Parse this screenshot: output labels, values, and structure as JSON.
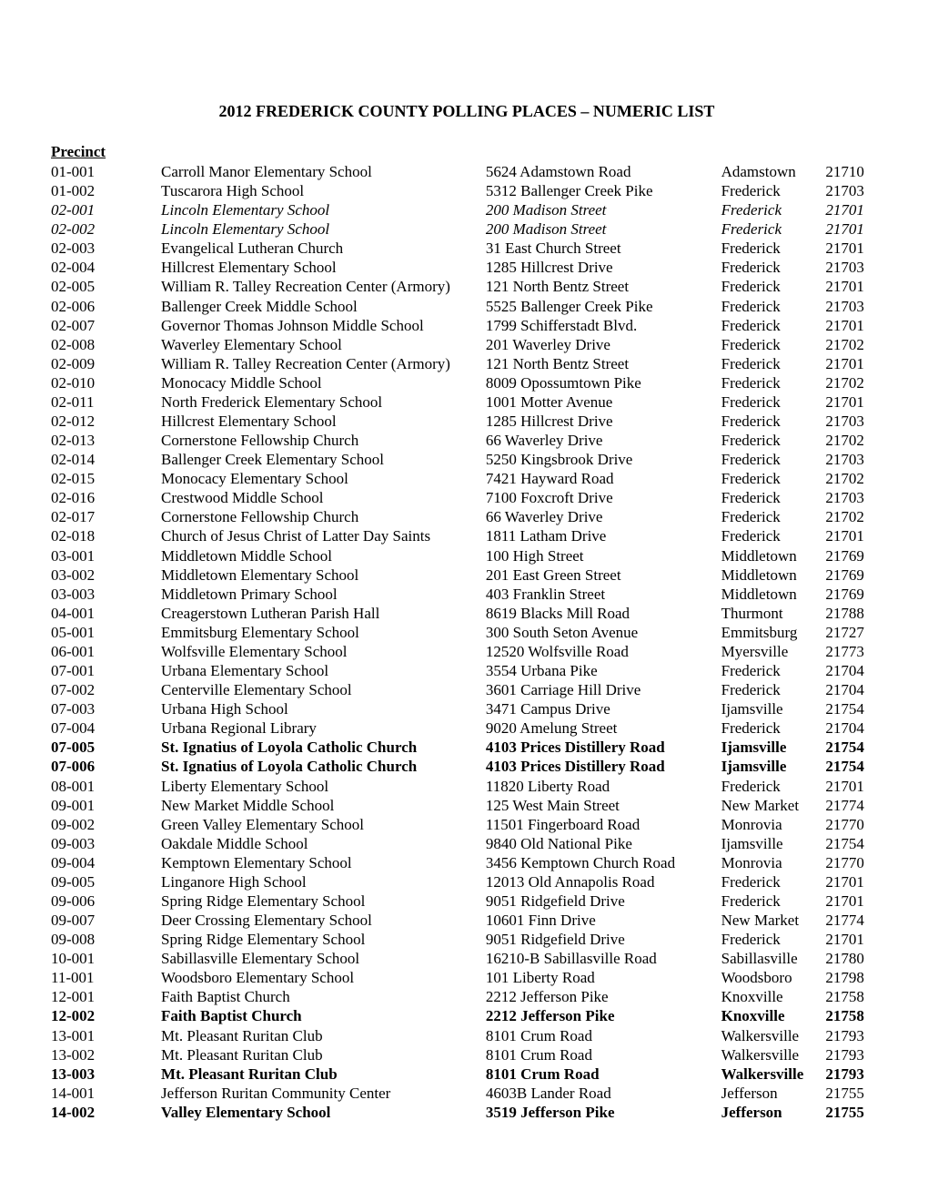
{
  "title": "2012 FREDERICK COUNTY POLLING PLACES – NUMERIC LIST",
  "column_header": "Precinct",
  "rows": [
    {
      "precinct": "01-001",
      "name": "Carroll Manor Elementary School",
      "address": "5624 Adamstown Road",
      "city": "Adamstown",
      "zip": "21710",
      "style": "normal"
    },
    {
      "precinct": "01-002",
      "name": "Tuscarora High School",
      "address": "5312 Ballenger Creek Pike",
      "city": "Frederick",
      "zip": "21703",
      "style": "normal"
    },
    {
      "precinct": "02-001",
      "name": "Lincoln Elementary School",
      "address": "200 Madison Street",
      "city": "Frederick",
      "zip": "21701",
      "style": "italic"
    },
    {
      "precinct": "02-002",
      "name": "Lincoln Elementary School",
      "address": "200 Madison Street",
      "city": "Frederick",
      "zip": "21701",
      "style": "italic"
    },
    {
      "precinct": "02-003",
      "name": "Evangelical Lutheran Church",
      "address": "31 East Church Street",
      "city": "Frederick",
      "zip": "21701",
      "style": "normal"
    },
    {
      "precinct": "02-004",
      "name": "Hillcrest Elementary School",
      "address": "1285 Hillcrest Drive",
      "city": "Frederick",
      "zip": "21703",
      "style": "normal"
    },
    {
      "precinct": "02-005",
      "name": "William R. Talley Recreation Center (Armory)",
      "address": "121 North Bentz Street",
      "city": "Frederick",
      "zip": "21701",
      "style": "normal"
    },
    {
      "precinct": "02-006",
      "name": "Ballenger Creek Middle School",
      "address": "5525 Ballenger Creek Pike",
      "city": "Frederick",
      "zip": "21703",
      "style": "normal"
    },
    {
      "precinct": "02-007",
      "name": "Governor Thomas Johnson Middle School",
      "address": "1799 Schifferstadt Blvd.",
      "city": "Frederick",
      "zip": "21701",
      "style": "normal"
    },
    {
      "precinct": "02-008",
      "name": "Waverley Elementary School",
      "address": "201 Waverley Drive",
      "city": "Frederick",
      "zip": "21702",
      "style": "normal"
    },
    {
      "precinct": "02-009",
      "name": "William R. Talley Recreation Center (Armory)",
      "address": "121 North Bentz Street",
      "city": "Frederick",
      "zip": "21701",
      "style": "normal"
    },
    {
      "precinct": "02-010",
      "name": "Monocacy Middle School",
      "address": "8009 Opossumtown Pike",
      "city": "Frederick",
      "zip": "21702",
      "style": "normal"
    },
    {
      "precinct": "02-011",
      "name": "North Frederick Elementary School",
      "address": "1001 Motter Avenue",
      "city": "Frederick",
      "zip": "21701",
      "style": "normal"
    },
    {
      "precinct": "02-012",
      "name": "Hillcrest Elementary School",
      "address": "1285 Hillcrest Drive",
      "city": "Frederick",
      "zip": "21703",
      "style": "normal"
    },
    {
      "precinct": "02-013",
      "name": "Cornerstone Fellowship Church",
      "address": "66 Waverley Drive",
      "city": "Frederick",
      "zip": "21702",
      "style": "normal"
    },
    {
      "precinct": "02-014",
      "name": "Ballenger Creek Elementary School",
      "address": "5250 Kingsbrook Drive",
      "city": "Frederick",
      "zip": "21703",
      "style": "normal"
    },
    {
      "precinct": "02-015",
      "name": "Monocacy Elementary School",
      "address": "7421 Hayward Road",
      "city": "Frederick",
      "zip": "21702",
      "style": "normal"
    },
    {
      "precinct": "02-016",
      "name": "Crestwood Middle School",
      "address": "7100 Foxcroft Drive",
      "city": "Frederick",
      "zip": "21703",
      "style": "normal"
    },
    {
      "precinct": "02-017",
      "name": "Cornerstone Fellowship Church",
      "address": "66 Waverley Drive",
      "city": "Frederick",
      "zip": "21702",
      "style": "normal"
    },
    {
      "precinct": "02-018",
      "name": "Church of Jesus Christ of Latter Day Saints",
      "address": "1811 Latham Drive",
      "city": "Frederick",
      "zip": "21701",
      "style": "normal"
    },
    {
      "precinct": "03-001",
      "name": "Middletown Middle School",
      "address": "100 High Street",
      "city": "Middletown",
      "zip": "21769",
      "style": "normal"
    },
    {
      "precinct": "03-002",
      "name": "Middletown Elementary School",
      "address": "201 East Green Street",
      "city": "Middletown",
      "zip": "21769",
      "style": "normal"
    },
    {
      "precinct": "03-003",
      "name": "Middletown Primary School",
      "address": "403 Franklin Street",
      "city": "Middletown",
      "zip": "21769",
      "style": "normal"
    },
    {
      "precinct": "04-001",
      "name": "Creagerstown Lutheran Parish Hall",
      "address": "8619 Blacks Mill Road",
      "city": "Thurmont",
      "zip": "21788",
      "style": "normal"
    },
    {
      "precinct": "05-001",
      "name": "Emmitsburg Elementary School",
      "address": "300 South Seton Avenue",
      "city": "Emmitsburg",
      "zip": "21727",
      "style": "normal"
    },
    {
      "precinct": "06-001",
      "name": "Wolfsville Elementary School",
      "address": "12520 Wolfsville Road",
      "city": "Myersville",
      "zip": "21773",
      "style": "normal"
    },
    {
      "precinct": "07-001",
      "name": "Urbana Elementary School",
      "address": "3554 Urbana Pike",
      "city": "Frederick",
      "zip": "21704",
      "style": "normal"
    },
    {
      "precinct": "07-002",
      "name": "Centerville Elementary School",
      "address": "3601 Carriage Hill Drive",
      "city": "Frederick",
      "zip": "21704",
      "style": "normal"
    },
    {
      "precinct": "07-003",
      "name": "Urbana High School",
      "address": "3471 Campus Drive",
      "city": "Ijamsville",
      "zip": "21754",
      "style": "normal"
    },
    {
      "precinct": "07-004",
      "name": "Urbana Regional Library",
      "address": "9020 Amelung Street",
      "city": "Frederick",
      "zip": "21704",
      "style": "normal"
    },
    {
      "precinct": "07-005",
      "name": "St. Ignatius of Loyola Catholic Church",
      "address": "4103 Prices Distillery Road",
      "city": "Ijamsville",
      "zip": "21754",
      "style": "bold"
    },
    {
      "precinct": "07-006",
      "name": "St. Ignatius of Loyola Catholic Church",
      "address": "4103 Prices Distillery Road",
      "city": "Ijamsville",
      "zip": "21754",
      "style": "bold"
    },
    {
      "precinct": "08-001",
      "name": "Liberty Elementary School",
      "address": "11820 Liberty Road",
      "city": "Frederick",
      "zip": "21701",
      "style": "normal"
    },
    {
      "precinct": "09-001",
      "name": "New Market Middle School",
      "address": "125 West Main Street",
      "city": "New Market",
      "zip": "21774",
      "style": "normal"
    },
    {
      "precinct": "09-002",
      "name": "Green Valley Elementary School",
      "address": "11501 Fingerboard Road",
      "city": "Monrovia",
      "zip": "21770",
      "style": "normal"
    },
    {
      "precinct": "09-003",
      "name": "Oakdale Middle School",
      "address": "9840 Old National Pike",
      "city": "Ijamsville",
      "zip": "21754",
      "style": "normal"
    },
    {
      "precinct": "09-004",
      "name": "Kemptown Elementary School",
      "address": "3456 Kemptown Church Road",
      "city": "Monrovia",
      "zip": "21770",
      "style": "normal"
    },
    {
      "precinct": "09-005",
      "name": "Linganore High School",
      "address": "12013 Old Annapolis Road",
      "city": "Frederick",
      "zip": "21701",
      "style": "normal"
    },
    {
      "precinct": "09-006",
      "name": "Spring Ridge Elementary School",
      "address": "9051 Ridgefield Drive",
      "city": "Frederick",
      "zip": "21701",
      "style": "normal"
    },
    {
      "precinct": "09-007",
      "name": "Deer Crossing Elementary School",
      "address": "10601 Finn Drive",
      "city": "New Market",
      "zip": "21774",
      "style": "normal"
    },
    {
      "precinct": "09-008",
      "name": "Spring Ridge Elementary School",
      "address": "9051 Ridgefield Drive",
      "city": "Frederick",
      "zip": "21701",
      "style": "normal"
    },
    {
      "precinct": "10-001",
      "name": "Sabillasville Elementary School",
      "address": "16210-B Sabillasville Road",
      "city": "Sabillasville",
      "zip": "21780",
      "style": "normal"
    },
    {
      "precinct": "11-001",
      "name": "Woodsboro Elementary School",
      "address": "101 Liberty Road",
      "city": "Woodsboro",
      "zip": "21798",
      "style": "normal"
    },
    {
      "precinct": "12-001",
      "name": "Faith Baptist Church",
      "address": "2212 Jefferson Pike",
      "city": "Knoxville",
      "zip": "21758",
      "style": "normal"
    },
    {
      "precinct": "12-002",
      "name": "Faith Baptist Church",
      "address": "2212 Jefferson Pike",
      "city": "Knoxville",
      "zip": "21758",
      "style": "bold"
    },
    {
      "precinct": "13-001",
      "name": "Mt. Pleasant Ruritan Club",
      "address": "8101 Crum Road",
      "city": "Walkersville",
      "zip": "21793",
      "style": "normal"
    },
    {
      "precinct": "13-002",
      "name": "Mt. Pleasant Ruritan Club",
      "address": "8101 Crum Road",
      "city": "Walkersville",
      "zip": "21793",
      "style": "normal"
    },
    {
      "precinct": "13-003",
      "name": "Mt. Pleasant Ruritan Club",
      "address": "8101 Crum Road",
      "city": "Walkersville",
      "zip": "21793",
      "style": "bold"
    },
    {
      "precinct": "14-001",
      "name": "Jefferson Ruritan Community Center",
      "address": "4603B Lander Road",
      "city": "Jefferson",
      "zip": "21755",
      "style": "normal"
    },
    {
      "precinct": "14-002",
      "name": "Valley Elementary School",
      "address": "3519 Jefferson Pike",
      "city": "Jefferson",
      "zip": "21755",
      "style": "bold"
    }
  ]
}
